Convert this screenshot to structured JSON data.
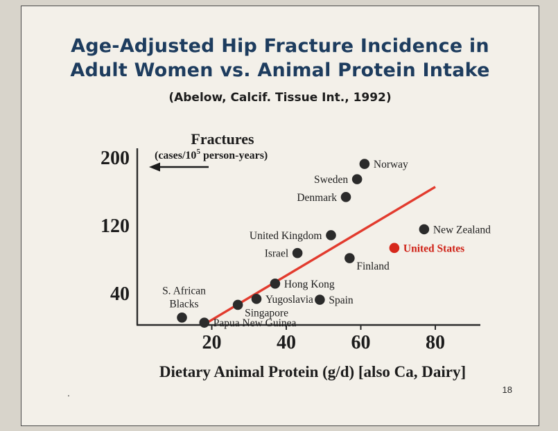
{
  "slide": {
    "title_line1": "Age-Adjusted Hip Fracture Incidence in",
    "title_line2": "Adult Women vs. Animal Protein Intake",
    "subtitle": "(Abelow, Calcif. Tissue Int., 1992)",
    "page_number": "18",
    "footer_dot": "."
  },
  "chart_data": {
    "type": "scatter",
    "title": "Age-Adjusted Hip Fracture Incidence in Adult Women vs. Animal Protein Intake",
    "source": "(Abelow, Calcif. Tissue Int., 1992)",
    "ylabel_title": "Fractures",
    "ylabel_units_prefix": "(cases/10",
    "ylabel_units_sup": "5",
    "ylabel_units_suffix": " person-years)",
    "xlabel": "Dietary Animal Protein (g/d) [also Ca, Dairy]",
    "x_ticks": [
      20,
      40,
      60,
      80
    ],
    "y_ticks": [
      200,
      120,
      40
    ],
    "xlim": [
      0,
      92
    ],
    "ylim": [
      0,
      215
    ],
    "grid": false,
    "point_color": "#2b2b2b",
    "highlight_color": "#d6281b",
    "trend_line": {
      "x1": 18,
      "y1": 4,
      "x2": 80,
      "y2": 166,
      "color": "#e23b2e"
    },
    "points": [
      {
        "label": "Norway",
        "x": 61,
        "y": 193,
        "side": "right"
      },
      {
        "label": "Sweden",
        "x": 59,
        "y": 175,
        "side": "left"
      },
      {
        "label": "Denmark",
        "x": 56,
        "y": 154,
        "side": "left"
      },
      {
        "label": "New Zealand",
        "x": 77,
        "y": 116,
        "side": "right"
      },
      {
        "label": "United Kingdom",
        "x": 52,
        "y": 109,
        "side": "left"
      },
      {
        "label": "United States",
        "x": 69,
        "y": 94,
        "side": "right",
        "highlight": true
      },
      {
        "label": "Israel",
        "x": 43,
        "y": 88,
        "side": "left"
      },
      {
        "label": "Finland",
        "x": 57,
        "y": 82,
        "side": "below-right"
      },
      {
        "label": "Hong Kong",
        "x": 37,
        "y": 52,
        "side": "right"
      },
      {
        "label": "Yugoslavia",
        "x": 32,
        "y": 34,
        "side": "right"
      },
      {
        "label": "Spain",
        "x": 49,
        "y": 33,
        "side": "right"
      },
      {
        "label": "Singapore",
        "x": 27,
        "y": 27,
        "side": "below-right"
      },
      {
        "label": "S. African\nBlacks",
        "x": 12,
        "y": 12,
        "side": "above"
      },
      {
        "label": "Papua New Guinea",
        "x": 18,
        "y": 6,
        "side": "right"
      }
    ]
  }
}
